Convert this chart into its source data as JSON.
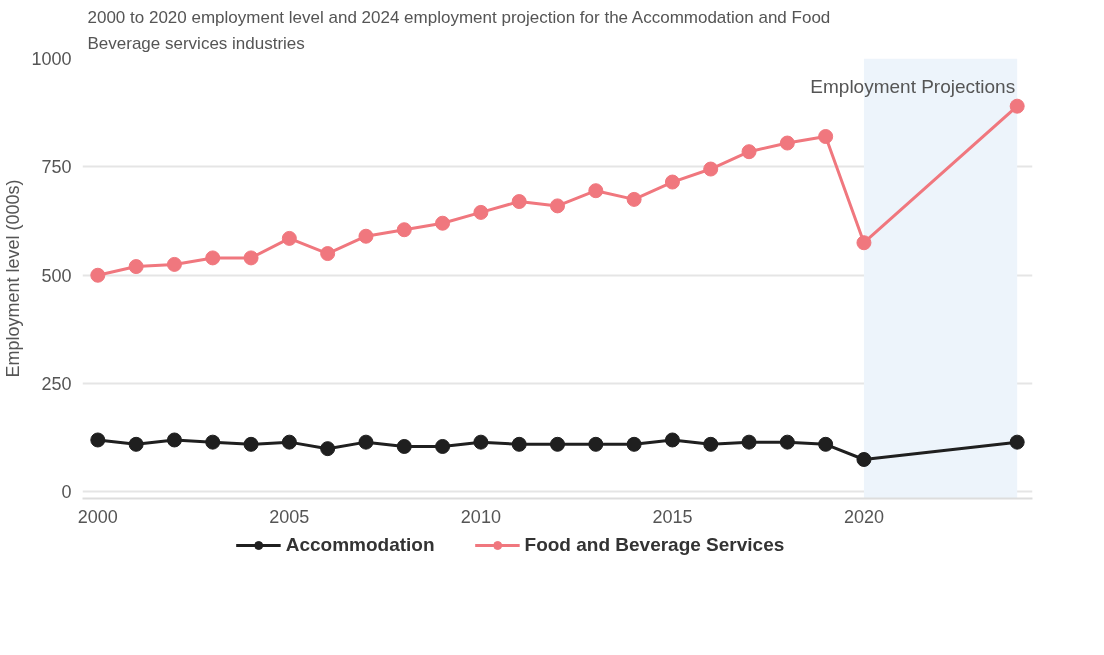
{
  "chart_data": {
    "type": "line",
    "title": "2000 to 2020 employment level and 2024 employment projection for the Accommodation and Food Beverage services industries",
    "ylabel": "Employment level (000s)",
    "x": [
      2000,
      2001,
      2002,
      2003,
      2004,
      2005,
      2006,
      2007,
      2008,
      2009,
      2010,
      2011,
      2012,
      2013,
      2014,
      2015,
      2016,
      2017,
      2018,
      2019,
      2020,
      2024
    ],
    "series": [
      {
        "name": "Accommodation",
        "color": "#1f1f1f",
        "values": [
          120,
          110,
          120,
          115,
          110,
          115,
          100,
          115,
          105,
          105,
          115,
          110,
          110,
          110,
          110,
          120,
          110,
          115,
          115,
          110,
          75,
          115
        ]
      },
      {
        "name": "Food and Beverage Services",
        "color": "#f0777e",
        "values": [
          500,
          520,
          525,
          540,
          540,
          585,
          550,
          590,
          605,
          620,
          645,
          670,
          660,
          695,
          675,
          715,
          745,
          785,
          805,
          820,
          575,
          890
        ]
      }
    ],
    "xlim": [
      1999.6,
      2024.4
    ],
    "ylim": [
      -15,
      1000
    ],
    "xticks": [
      2000,
      2005,
      2010,
      2015,
      2020
    ],
    "yticks": [
      0,
      250,
      500,
      750,
      1000
    ],
    "bands": [
      {
        "axis": "x",
        "from": 2020,
        "to": 2024,
        "label": "Employment Projections",
        "color": "#edf4fb"
      }
    ],
    "grid": "y",
    "legend": "bottom",
    "marker": "circle",
    "line_style": "solid"
  }
}
